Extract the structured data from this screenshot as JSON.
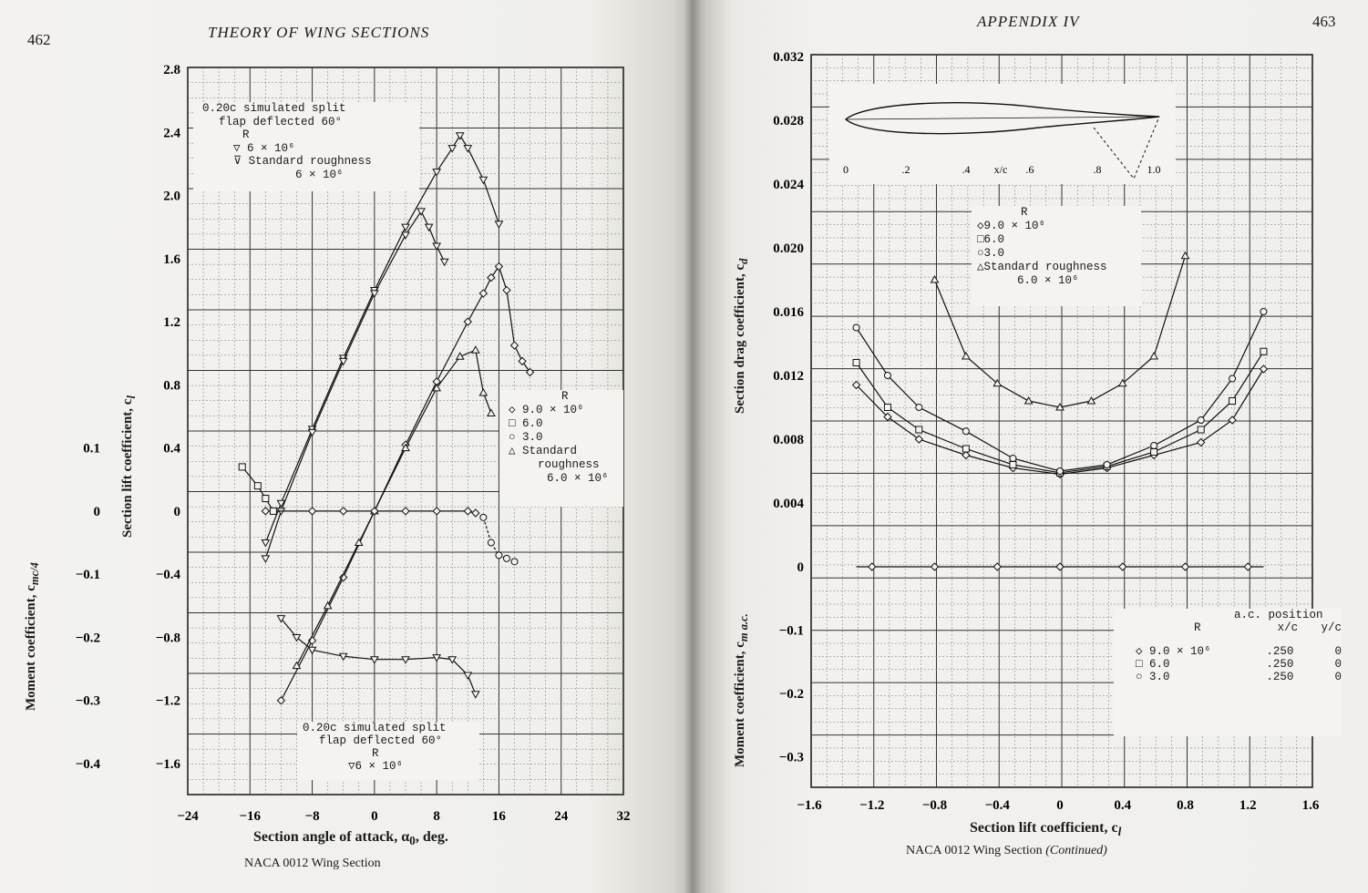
{
  "left_page": {
    "page_number": "462",
    "running_head": "THEORY OF WING SECTIONS",
    "caption": "NACA 0012 Wing Section",
    "chart": {
      "ylabel_lift": "Section lift coefficient, c",
      "ylabel_lift_sub": "l",
      "ylabel_moment": "Moment coefficient, c",
      "ylabel_moment_sub": "mc/4",
      "xlabel": "Section angle of attack, α",
      "xlabel_sub": "0",
      "xlabel_unit": ", deg.",
      "legend_top": {
        "line1": "0.20c simulated split",
        "line2": "flap deflected 60°",
        "r": "R",
        "entry1": "6 × 10⁶",
        "entry2": "Standard roughness",
        "entry2b": "6 × 10⁶"
      },
      "legend_right": {
        "r": "R",
        "entry1": "9.0 × 10⁶",
        "entry2": "6.0",
        "entry3": "3.0",
        "entry4": "Standard",
        "entry4b": "roughness",
        "entry4c": "6.0 × 10⁶"
      },
      "legend_bottom": {
        "line1": "0.20c simulated split",
        "line2": "flap deflected 60°",
        "r": "R",
        "entry1": "6 × 10⁶"
      }
    }
  },
  "right_page": {
    "page_number": "463",
    "running_head": "APPENDIX IV",
    "caption": "NACA 0012 Wing Section",
    "caption_italic": "(Continued)",
    "chart": {
      "ylabel_drag": "Section drag coefficient, c",
      "ylabel_drag_sub": "d",
      "ylabel_moment": "Moment coefficient, c",
      "ylabel_moment_sub": "m a.c.",
      "xlabel": "Section lift coefficient, c",
      "xlabel_sub": "l",
      "legend_drag": {
        "r": "R",
        "entry1": "9.0 × 10⁶",
        "entry2": "6.0",
        "entry3": "3.0",
        "entry4": "Standard roughness",
        "entry4b": "6.0 × 10⁶"
      },
      "legend_moment": {
        "ac_position": "a.c. position",
        "r": "R",
        "xc": "x/c",
        "yc": "y/c",
        "rows": [
          {
            "r": "9.0 × 10⁶",
            "xc": ".250",
            "yc": "0"
          },
          {
            "r": "6.0",
            "xc": ".250",
            "yc": "0"
          },
          {
            "r": "3.0",
            "xc": ".250",
            "yc": "0"
          }
        ]
      },
      "airfoil_ticks": [
        "0",
        ".2",
        ".4",
        "x/c",
        ".6",
        ".8",
        "1.0"
      ]
    }
  },
  "chart_data": [
    {
      "type": "line",
      "xlabel": "Section angle of attack, α0, deg.",
      "ylabel": "Section lift coefficient, cl",
      "y2label": "Moment coefficient, cmc/4",
      "xlim": [
        -24,
        32
      ],
      "ylim": [
        -1.6,
        2.8
      ],
      "y2lim": [
        -0.4,
        0.1
      ],
      "x_ticks": [
        "-24",
        "-16",
        "-8",
        "0",
        "8",
        "16",
        "24",
        "32"
      ],
      "y_ticks": [
        "-1.6",
        "-1.2",
        "-0.8",
        "-0.4",
        "0",
        "0.4",
        "0.8",
        "1.2",
        "1.6",
        "2.0",
        "2.4",
        "2.8"
      ],
      "y2_ticks": [
        "-0.4",
        "-0.3",
        "-0.2",
        "-0.1",
        "0",
        "0.1"
      ],
      "series": [
        {
          "name": "R 9.0 × 10⁶",
          "x": [
            -12,
            -8,
            -4,
            0,
            4,
            8,
            12,
            14,
            15,
            16,
            17,
            18,
            19,
            20
          ],
          "y": [
            -1.2,
            -0.82,
            -0.42,
            0.0,
            0.42,
            0.82,
            1.2,
            1.38,
            1.48,
            1.55,
            1.4,
            1.05,
            0.95,
            0.88
          ]
        },
        {
          "name": "Standard roughness 6.0 × 10⁶",
          "x": [
            -10,
            -6,
            -2,
            0,
            4,
            8,
            11,
            13,
            14,
            15
          ],
          "y": [
            -0.98,
            -0.6,
            -0.2,
            0.0,
            0.4,
            0.78,
            0.98,
            1.02,
            0.75,
            0.62
          ]
        },
        {
          "name": "0.20c simulated split flap deflected 60° R 6 × 10⁶",
          "x": [
            -14,
            -12,
            -8,
            -4,
            0,
            4,
            8,
            10,
            11,
            12,
            14,
            16
          ],
          "y": [
            -0.2,
            0.05,
            0.52,
            0.97,
            1.4,
            1.8,
            2.15,
            2.3,
            2.38,
            2.3,
            2.1,
            1.82
          ]
        },
        {
          "name": "Standard roughness 6 × 10⁶",
          "x": [
            -14,
            -12,
            -8,
            -4,
            0,
            4,
            6,
            7,
            8,
            9
          ],
          "y": [
            -0.3,
            0.0,
            0.5,
            0.95,
            1.38,
            1.75,
            1.9,
            1.8,
            1.68,
            1.58
          ]
        }
      ]
    },
    {
      "type": "line",
      "xlabel": "Section lift coefficient, cl",
      "ylabel": "Section drag coefficient, cd",
      "y2label": "Moment coefficient, cm a.c.",
      "xlim": [
        -1.6,
        1.6
      ],
      "ylim": [
        0,
        0.032
      ],
      "y2lim": [
        -0.3,
        0
      ],
      "x_ticks": [
        "-1.6",
        "-1.2",
        "-0.8",
        "-0.4",
        "0",
        "0.4",
        "0.8",
        "1.2",
        "1.6"
      ],
      "y_ticks": [
        "0",
        "0.004",
        "0.008",
        "0.012",
        "0.016",
        "0.020",
        "0.024",
        "0.028",
        "0.032"
      ],
      "y2_ticks": [
        "-0.3",
        "-0.2",
        "-0.1",
        "0"
      ],
      "series": [
        {
          "name": "9.0 × 10⁶",
          "x": [
            -1.3,
            -1.1,
            -0.9,
            -0.6,
            -0.3,
            0,
            0.3,
            0.6,
            0.9,
            1.1,
            1.3
          ],
          "y": [
            0.0114,
            0.0094,
            0.008,
            0.007,
            0.0062,
            0.0058,
            0.0062,
            0.007,
            0.0078,
            0.0092,
            0.0124
          ]
        },
        {
          "name": "6.0",
          "x": [
            -1.3,
            -1.1,
            -0.9,
            -0.6,
            -0.3,
            0,
            0.3,
            0.6,
            0.9,
            1.1,
            1.3
          ],
          "y": [
            0.0128,
            0.01,
            0.0086,
            0.0074,
            0.0064,
            0.0059,
            0.0063,
            0.0072,
            0.0086,
            0.0104,
            0.0135
          ]
        },
        {
          "name": "3.0",
          "x": [
            -1.3,
            -1.1,
            -0.9,
            -0.6,
            -0.3,
            0,
            0.3,
            0.6,
            0.9,
            1.1,
            1.3
          ],
          "y": [
            0.015,
            0.012,
            0.01,
            0.0085,
            0.0068,
            0.006,
            0.0064,
            0.0076,
            0.0092,
            0.0118,
            0.016
          ]
        },
        {
          "name": "Standard roughness 6.0 × 10⁶",
          "x": [
            -0.8,
            -0.6,
            -0.4,
            -0.2,
            0,
            0.2,
            0.4,
            0.6,
            0.8
          ],
          "y": [
            0.018,
            0.0132,
            0.0115,
            0.0104,
            0.01,
            0.0104,
            0.0115,
            0.0132,
            0.0195
          ]
        },
        {
          "name": "Moment 9.0 × 10⁶",
          "x": [
            -1.2,
            -0.8,
            -0.4,
            0,
            0.4,
            0.8,
            1.2
          ],
          "y2": [
            0,
            0,
            0,
            0,
            0,
            0,
            0
          ]
        }
      ]
    }
  ]
}
